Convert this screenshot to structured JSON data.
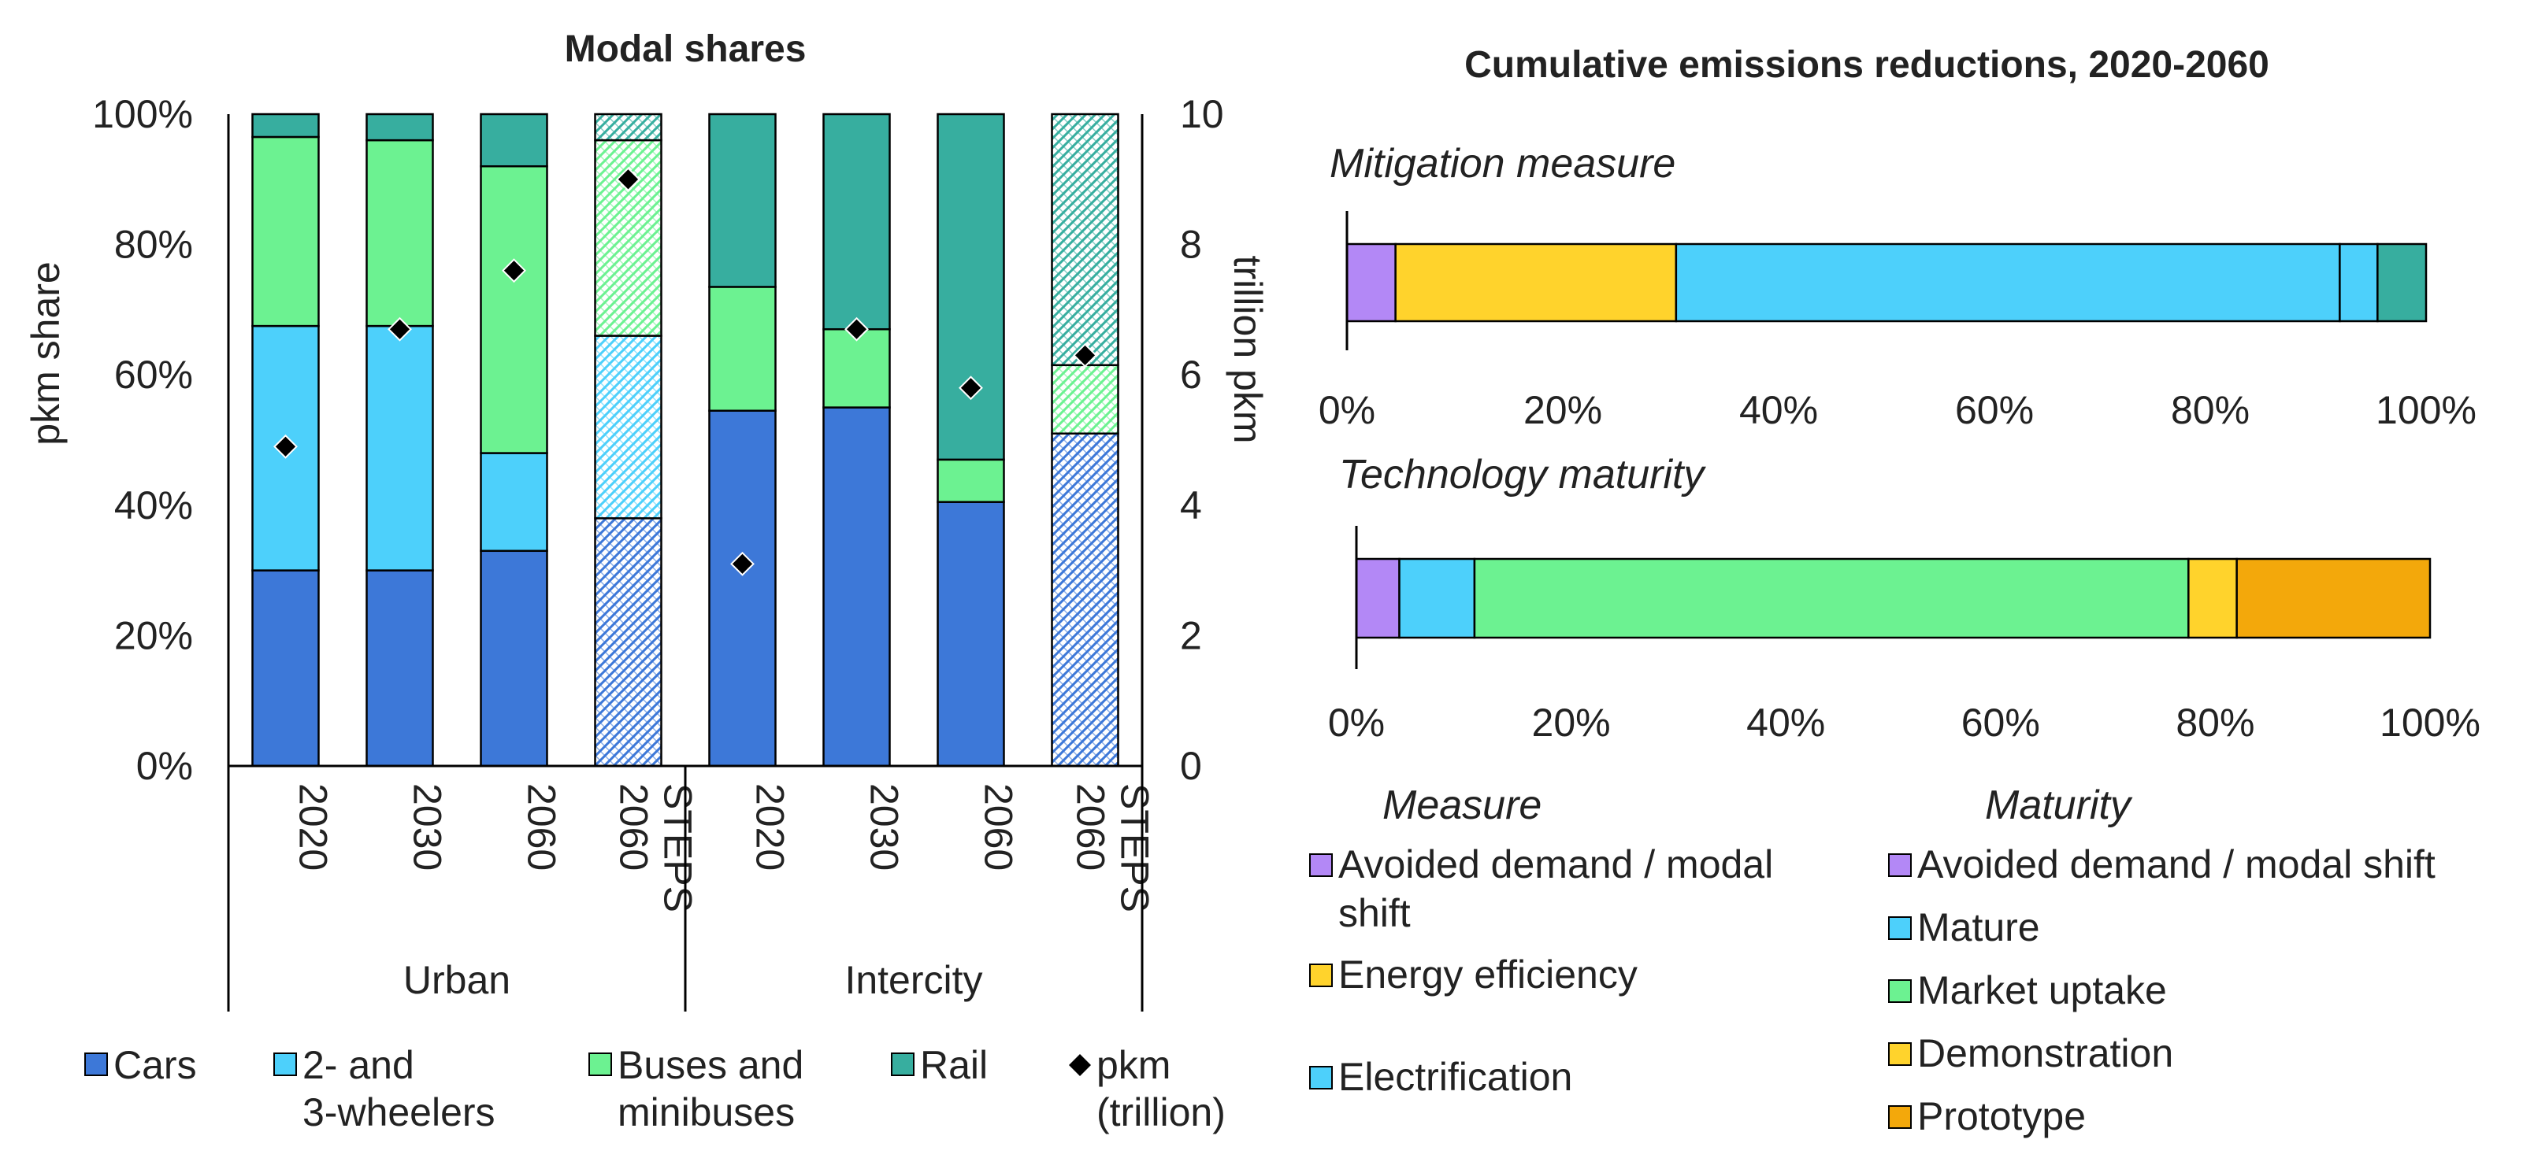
{
  "colors": {
    "cars": "#3d78d8",
    "two_three_wheelers": "#4dd0fb",
    "buses": "#6cf291",
    "rail": "#37ae9f",
    "avoided": "#b388f6",
    "efficiency": "#ffd32c",
    "electrification": "#4dd0fb",
    "mature": "#4dd0fb",
    "market_uptake": "#6cf291",
    "demonstration": "#ffd32c",
    "prototype": "#f3a80b",
    "marker": "#000000"
  },
  "chart_data": [
    {
      "type": "bar",
      "stacked": true,
      "title": "Modal shares",
      "ylabel": "pkm share",
      "y2label": "trillion pkm",
      "ylim": [
        0,
        100
      ],
      "y2lim": [
        0,
        10
      ],
      "yticks": [
        "0%",
        "20%",
        "40%",
        "60%",
        "80%",
        "100%"
      ],
      "y2ticks": [
        "0",
        "2",
        "4",
        "6",
        "8",
        "10"
      ],
      "groups": [
        "Urban",
        "Intercity"
      ],
      "categories": [
        "2020",
        "2030",
        "2060",
        "2060 STEPS",
        "2020",
        "2030",
        "2060",
        "2060 STEPS"
      ],
      "category_lines": [
        [
          "2020"
        ],
        [
          "2030"
        ],
        [
          "2060"
        ],
        [
          "2060",
          "STEPS"
        ],
        [
          "2020"
        ],
        [
          "2030"
        ],
        [
          "2060"
        ],
        [
          "2060",
          "STEPS"
        ]
      ],
      "group_of_category": [
        0,
        0,
        0,
        0,
        1,
        1,
        1,
        1
      ],
      "hatched": [
        false,
        false,
        false,
        true,
        false,
        false,
        false,
        true
      ],
      "series": [
        {
          "key": "cars",
          "name": "Cars",
          "values": [
            30,
            30,
            33,
            38,
            54.5,
            55,
            40.5,
            51
          ]
        },
        {
          "key": "two_three_wheelers",
          "name": "2- and 3-wheelers",
          "values": [
            37.5,
            37.5,
            15,
            28,
            0,
            0,
            0,
            0
          ]
        },
        {
          "key": "buses",
          "name": "Buses and minibuses",
          "values": [
            29,
            28.5,
            44,
            30,
            19,
            12,
            6.5,
            10.5
          ]
        },
        {
          "key": "rail",
          "name": "Rail",
          "values": [
            3.5,
            4,
            8,
            4,
            26.5,
            33,
            53,
            38.5
          ]
        }
      ],
      "pkm": {
        "name": "pkm (trillion)",
        "values": [
          4.9,
          6.7,
          7.6,
          9.0,
          3.1,
          6.7,
          5.8,
          6.3
        ]
      },
      "legend": [
        {
          "key": "cars",
          "lines": [
            "Cars"
          ],
          "marker": "square"
        },
        {
          "key": "two_three_wheelers",
          "lines": [
            "2- and",
            "3-wheelers"
          ],
          "marker": "square"
        },
        {
          "key": "buses",
          "lines": [
            "Buses and",
            "minibuses"
          ],
          "marker": "square"
        },
        {
          "key": "rail",
          "lines": [
            "Rail"
          ],
          "marker": "square"
        },
        {
          "key": "marker",
          "lines": [
            "pkm",
            "(trillion)"
          ],
          "marker": "diamond"
        }
      ]
    },
    {
      "type": "bar",
      "orientation": "horizontal",
      "stacked": true,
      "title": "Cumulative emissions reductions, 2020-2060",
      "subcharts": [
        {
          "label": "Mitigation measure",
          "segments": [
            {
              "key": "avoided",
              "name": "Avoided demand / modal shift",
              "value": 4.5
            },
            {
              "key": "efficiency",
              "name": "Energy efficiency",
              "value": 26
            },
            {
              "key": "electrification",
              "name": "Electrification",
              "value": 61.5
            },
            {
              "key": "two_three_wheelers",
              "name": "",
              "value": 3.5
            },
            {
              "key": "rail",
              "name": "",
              "value": 4.5
            }
          ],
          "xlim": [
            0,
            100
          ],
          "xticks": [
            "0%",
            "20%",
            "40%",
            "60%",
            "80%",
            "100%"
          ]
        },
        {
          "label": "Technology maturity",
          "segments": [
            {
              "key": "avoided",
              "name": "Avoided demand / modal shift",
              "value": 4
            },
            {
              "key": "mature",
              "name": "Mature",
              "value": 7
            },
            {
              "key": "market_uptake",
              "name": "Market uptake",
              "value": 66.5
            },
            {
              "key": "demonstration",
              "name": "Demonstration",
              "value": 4.5
            },
            {
              "key": "prototype",
              "name": "Prototype",
              "value": 18
            }
          ],
          "xlim": [
            0,
            100
          ],
          "xticks": [
            "0%",
            "20%",
            "40%",
            "60%",
            "80%",
            "100%"
          ]
        }
      ],
      "legend_measure": {
        "heading": "Measure",
        "items": [
          {
            "key": "avoided",
            "lines": [
              "Avoided demand / modal",
              "shift"
            ]
          },
          {
            "key": "efficiency",
            "lines": [
              "Energy efficiency"
            ]
          },
          {
            "key": "electrification",
            "lines": [
              "Electrification"
            ]
          }
        ]
      },
      "legend_maturity": {
        "heading": "Maturity",
        "items": [
          {
            "key": "avoided",
            "lines": [
              "Avoided demand / modal shift"
            ]
          },
          {
            "key": "mature",
            "lines": [
              "Mature"
            ]
          },
          {
            "key": "market_uptake",
            "lines": [
              "Market uptake"
            ]
          },
          {
            "key": "demonstration",
            "lines": [
              "Demonstration"
            ]
          },
          {
            "key": "prototype",
            "lines": [
              "Prototype"
            ]
          }
        ]
      }
    }
  ]
}
